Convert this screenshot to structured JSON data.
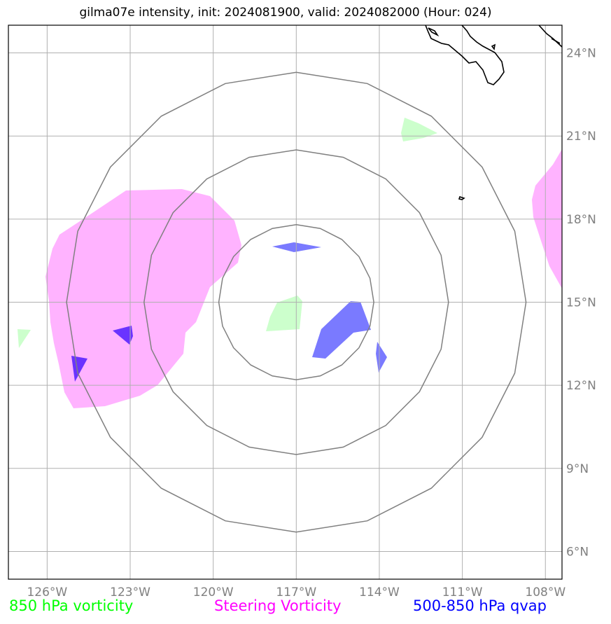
{
  "title": "gilma07e intensity, init: 2024081900, valid: 2024082000 (Hour: 024)",
  "legend": [
    {
      "label": "850 hPa vorticity",
      "color": "#00ff00"
    },
    {
      "label": "Steering Vorticity",
      "color": "#ff00ff"
    },
    {
      "label": "500-850 hPa qvap",
      "color": "#0000ff"
    }
  ],
  "axes": {
    "lon_ticks": [
      "126°W",
      "123°W",
      "120°W",
      "117°W",
      "114°W",
      "111°W",
      "108°W"
    ],
    "lat_ticks": [
      "24°N",
      "21°N",
      "18°N",
      "15°N",
      "12°N",
      "9°N",
      "6°N"
    ],
    "lon_values": [
      -126,
      -123,
      -120,
      -117,
      -114,
      -111,
      -108
    ],
    "lat_values": [
      24,
      21,
      18,
      15,
      12,
      9,
      6
    ],
    "lon_range": [
      -127.4,
      -107.4
    ],
    "lat_range": [
      5,
      25
    ],
    "grid": true
  },
  "storm_center": {
    "lon": -117,
    "lat": 15
  },
  "range_rings_deg": [
    2.8,
    5.5,
    8.3
  ],
  "colors": {
    "vort850": "#ccffcc",
    "steering": "#ffb3ff",
    "qvap": "#6666ff",
    "overlap": "#6a33ff",
    "ring": "#808080",
    "grid": "#b0b0b0",
    "coast": "#000000"
  }
}
